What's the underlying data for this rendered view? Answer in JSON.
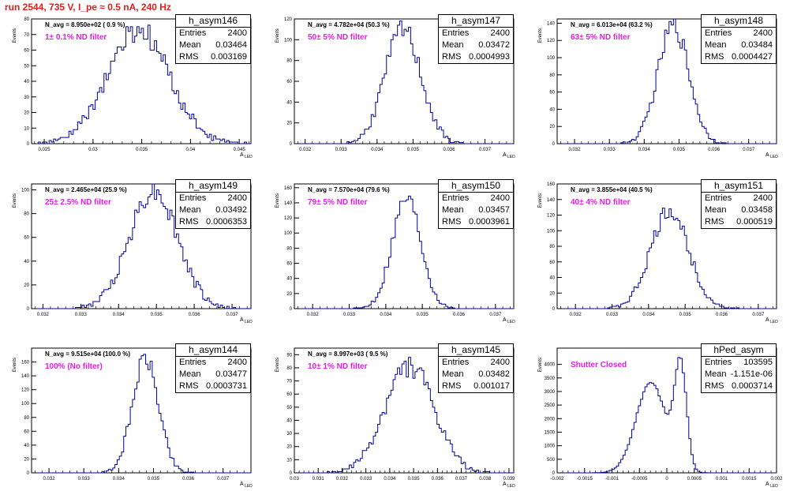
{
  "page_title": "run 2544,   735 V, I_pe ≈ 0.5 nA, 240 Hz",
  "colors": {
    "histogram_line": "#00009c",
    "title": "#e0201c",
    "filter_label": "#e020e0",
    "axis": "#000000"
  },
  "stat_labels": {
    "entries": "Entries",
    "mean": "Mean",
    "rms": "RMS"
  },
  "y_axis_label": "Events",
  "x_axis_label": "A",
  "x_axis_label_sub": "LED",
  "chart_data": [
    {
      "type": "histogram",
      "name": "h_asym146",
      "n_avg_label": "N_avg = 8.950e+02 ( 0.9 %)",
      "filter_label": "1± 0.1% ND filter",
      "stats": {
        "entries": "2400",
        "mean": "0.03464",
        "rms": "0.003169"
      },
      "xlim": [
        0.0237,
        0.0462
      ],
      "ylim": [
        0,
        80
      ],
      "xticks": [
        "0.025",
        "0.03",
        "0.035",
        "0.04",
        "0.045"
      ],
      "yticks": [
        "0",
        "10",
        "20",
        "30",
        "40",
        "50",
        "60",
        "70",
        "80"
      ],
      "mean": 0.03464,
      "sigma": 0.003169,
      "peak": 72,
      "seed": 146
    },
    {
      "type": "histogram",
      "name": "h_asym147",
      "n_avg_label": "N_avg = 4.782e+04 (50.3 %)",
      "filter_label": "50± 5% ND filter",
      "stats": {
        "entries": "2400",
        "mean": "0.03472",
        "rms": "0.0004993"
      },
      "xlim": [
        0.0317,
        0.0378
      ],
      "ylim": [
        0,
        120
      ],
      "xticks": [
        "0.032",
        "0.033",
        "0.034",
        "0.035",
        "0.036",
        "0.037"
      ],
      "yticks": [
        "0",
        "20",
        "40",
        "60",
        "80",
        "100",
        "120"
      ],
      "mean": 0.03472,
      "sigma": 0.0004993,
      "peak": 110,
      "seed": 147
    },
    {
      "type": "histogram",
      "name": "h_asym148",
      "n_avg_label": "N_avg = 6.013e+04 (63.2 %)",
      "filter_label": "63± 5% ND filter",
      "stats": {
        "entries": "2400",
        "mean": "0.03484",
        "rms": "0.0004427"
      },
      "xlim": [
        0.0315,
        0.0378
      ],
      "ylim": [
        0,
        145
      ],
      "xticks": [
        "0.032",
        "0.033",
        "0.034",
        "0.035",
        "0.036",
        "0.037"
      ],
      "yticks": [
        "0",
        "20",
        "40",
        "60",
        "80",
        "100",
        "120",
        "140"
      ],
      "mean": 0.03484,
      "sigma": 0.0004427,
      "peak": 138,
      "seed": 148
    },
    {
      "type": "histogram",
      "name": "h_asym149",
      "n_avg_label": "N_avg = 2.465e+04 (25.9 %)",
      "filter_label": "25± 2.5% ND filter",
      "stats": {
        "entries": "2400",
        "mean": "0.03492",
        "rms": "0.0006353"
      },
      "xlim": [
        0.0317,
        0.0375
      ],
      "ylim": [
        0,
        105
      ],
      "xticks": [
        "0.032",
        "0.033",
        "0.034",
        "0.035",
        "0.036",
        "0.037"
      ],
      "yticks": [
        "0",
        "20",
        "40",
        "60",
        "80",
        "100"
      ],
      "mean": 0.03492,
      "sigma": 0.0006353,
      "peak": 100,
      "seed": 149
    },
    {
      "type": "histogram",
      "name": "h_asym150",
      "n_avg_label": "N_avg = 7.570e+04 (79.6 %)",
      "filter_label": "79± 5% ND filter",
      "stats": {
        "entries": "2400",
        "mean": "0.03457",
        "rms": "0.0003961"
      },
      "xlim": [
        0.0315,
        0.0375
      ],
      "ylim": [
        0,
        165
      ],
      "xticks": [
        "0.032",
        "0.033",
        "0.034",
        "0.035",
        "0.036",
        "0.037"
      ],
      "yticks": [
        "0",
        "20",
        "40",
        "60",
        "80",
        "100",
        "120",
        "140",
        "160"
      ],
      "mean": 0.03457,
      "sigma": 0.0003961,
      "peak": 148,
      "seed": 150
    },
    {
      "type": "histogram",
      "name": "h_asym151",
      "n_avg_label": "N_avg = 3.855e+04 (40.5 %)",
      "filter_label": "40± 4% ND filter",
      "stats": {
        "entries": "2400",
        "mean": "0.03458",
        "rms": "0.000519"
      },
      "xlim": [
        0.0315,
        0.0375
      ],
      "ylim": [
        0,
        160
      ],
      "xticks": [
        "0.032",
        "0.033",
        "0.034",
        "0.035",
        "0.036",
        "0.037"
      ],
      "yticks": [
        "0",
        "20",
        "40",
        "60",
        "80",
        "100",
        "120",
        "140",
        "160"
      ],
      "mean": 0.03458,
      "sigma": 0.000519,
      "peak": 125,
      "seed": 151
    },
    {
      "type": "histogram",
      "name": "h_asym144",
      "n_avg_label": "N_avg = 9.515e+04 (100.0 %)",
      "filter_label": "100% (No filter)",
      "stats": {
        "entries": "2400",
        "mean": "0.03477",
        "rms": "0.0003731"
      },
      "xlim": [
        0.0315,
        0.0378
      ],
      "ylim": [
        0,
        180
      ],
      "xticks": [
        "0.032",
        "0.033",
        "0.034",
        "0.035",
        "0.036",
        "0.037"
      ],
      "yticks": [
        "0",
        "20",
        "40",
        "60",
        "80",
        "100",
        "120",
        "140",
        "160"
      ],
      "mean": 0.03477,
      "sigma": 0.0003731,
      "peak": 165,
      "seed": 144
    },
    {
      "type": "histogram",
      "name": "h_asym145",
      "n_avg_label": "N_avg = 8.997e+03 ( 9.5 %)",
      "filter_label": "10± 1% ND filter",
      "stats": {
        "entries": "2400",
        "mean": "0.03482",
        "rms": "0.001017"
      },
      "xlim": [
        0.03,
        0.0392
      ],
      "ylim": [
        0,
        95
      ],
      "xticks": [
        "0.03",
        "0.031",
        "0.032",
        "0.033",
        "0.034",
        "0.035",
        "0.036",
        "0.037",
        "0.038",
        "0.039"
      ],
      "yticks": [
        "0",
        "10",
        "20",
        "30",
        "40",
        "50",
        "60",
        "70",
        "80",
        "90"
      ],
      "mean": 0.03482,
      "sigma": 0.001017,
      "peak": 82,
      "seed": 145
    },
    {
      "type": "histogram",
      "name": "hPed_asym",
      "n_avg_label": "",
      "filter_label": "Shutter Closed",
      "stats": {
        "entries": "103595",
        "mean": "-1.151e-06",
        "rms": "0.0003714"
      },
      "xlim": [
        -0.002,
        0.002
      ],
      "ylim": [
        0,
        4600
      ],
      "xticks": [
        "-0.002",
        "-0.0015",
        "-0.001",
        "-0.0005",
        "0",
        "0.0005",
        "0.001",
        "0.0015",
        "0.002"
      ],
      "yticks": [
        "0",
        "500",
        "1000",
        "1500",
        "2000",
        "2500",
        "3000",
        "3500",
        "4000"
      ],
      "bimodal": [
        {
          "mean": -0.00029,
          "sigma": 0.00027,
          "peak": 3350
        },
        {
          "mean": 0.00025,
          "sigma": 0.00011,
          "peak": 3800
        }
      ],
      "seed": 9
    }
  ]
}
